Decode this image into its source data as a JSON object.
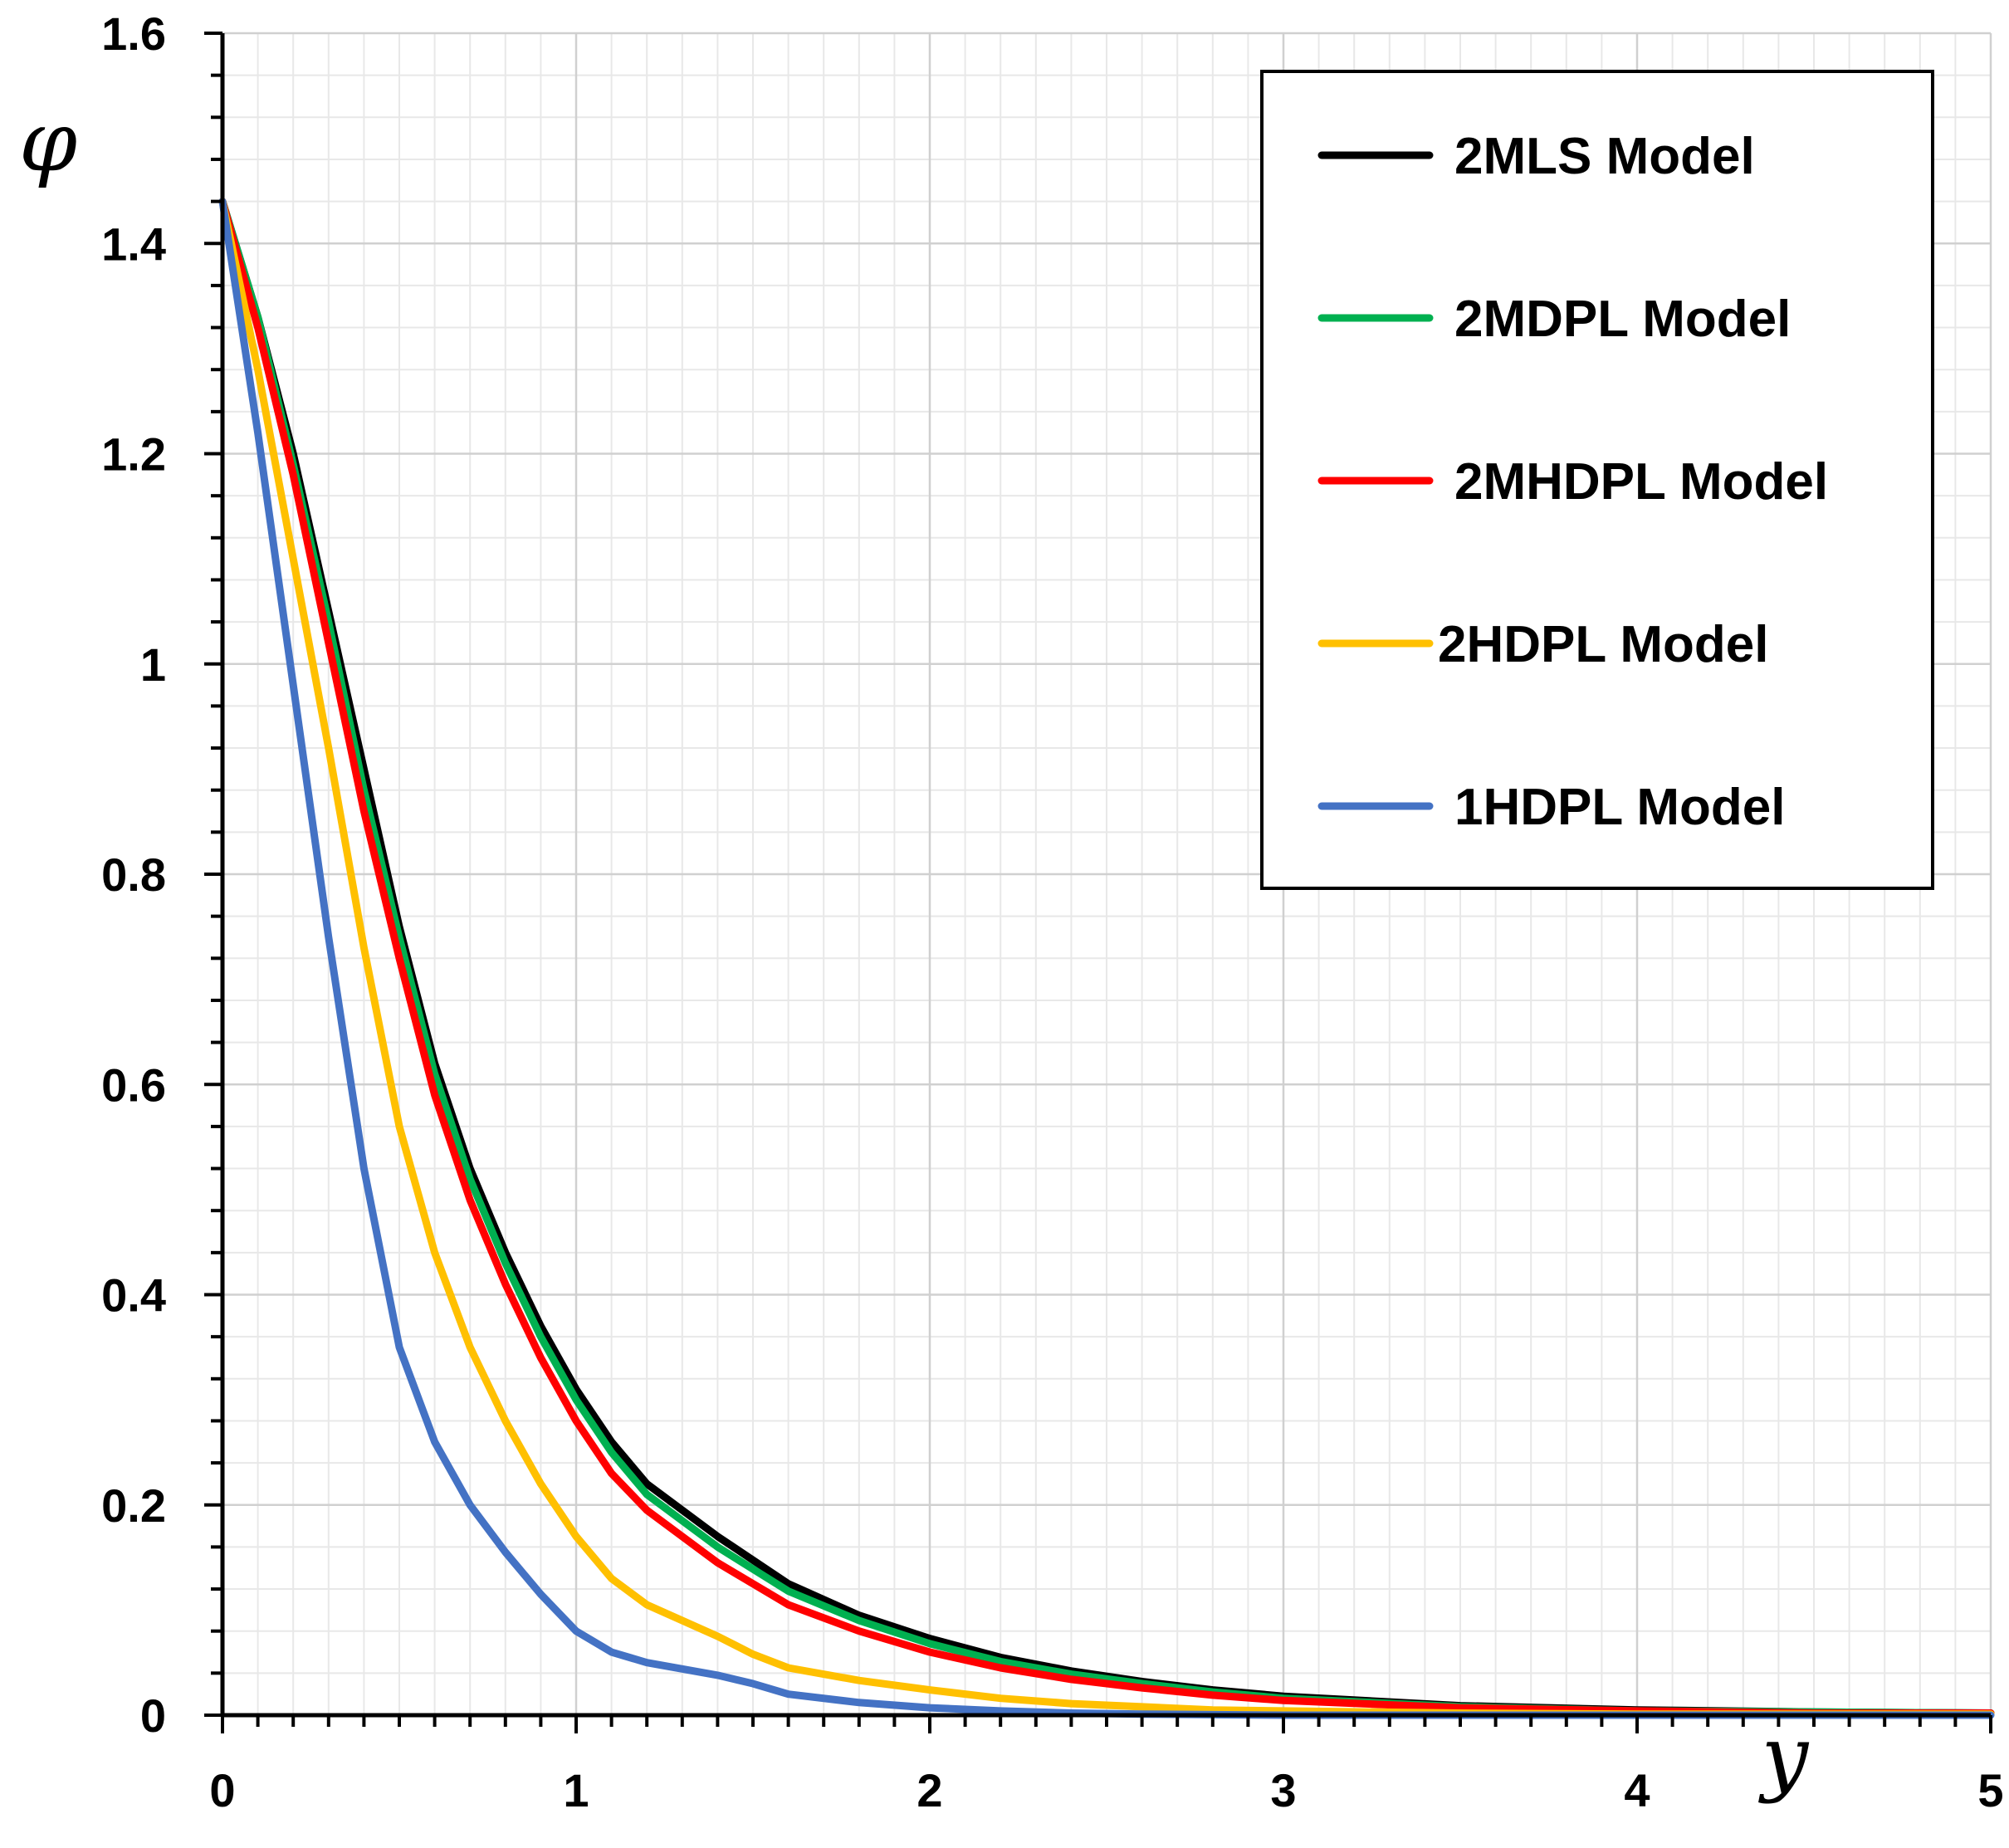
{
  "chart_data": {
    "type": "line",
    "title": "",
    "xlabel": "y",
    "ylabel": "φ",
    "xlim": [
      0,
      5
    ],
    "ylim": [
      0,
      1.6
    ],
    "x_major_ticks": [
      "0",
      "1",
      "2",
      "3",
      "4",
      "5"
    ],
    "y_major_ticks": [
      "0",
      "0.2",
      "0.4",
      "0.6",
      "0.8",
      "1",
      "1.2",
      "1.4",
      "1.6"
    ],
    "grid": true,
    "legend_position": "top-right",
    "series": [
      {
        "name": "2MLS Model",
        "color": "#000000",
        "points": [
          [
            0,
            1.44
          ],
          [
            0.1,
            1.33
          ],
          [
            0.2,
            1.2
          ],
          [
            0.3,
            1.05
          ],
          [
            0.4,
            0.9
          ],
          [
            0.5,
            0.75
          ],
          [
            0.6,
            0.62
          ],
          [
            0.7,
            0.52
          ],
          [
            0.8,
            0.44
          ],
          [
            0.9,
            0.37
          ],
          [
            1.0,
            0.31
          ],
          [
            1.1,
            0.26
          ],
          [
            1.2,
            0.22
          ],
          [
            1.4,
            0.17
          ],
          [
            1.6,
            0.125
          ],
          [
            1.8,
            0.095
          ],
          [
            2.0,
            0.073
          ],
          [
            2.2,
            0.055
          ],
          [
            2.4,
            0.042
          ],
          [
            2.6,
            0.032
          ],
          [
            2.8,
            0.024
          ],
          [
            3.0,
            0.018
          ],
          [
            3.5,
            0.009
          ],
          [
            4.0,
            0.005
          ],
          [
            4.5,
            0.003
          ],
          [
            5.0,
            0.002
          ]
        ]
      },
      {
        "name": "2MDPL Model",
        "color": "#00b050",
        "points": [
          [
            0,
            1.44
          ],
          [
            0.1,
            1.33
          ],
          [
            0.2,
            1.19
          ],
          [
            0.3,
            1.04
          ],
          [
            0.4,
            0.88
          ],
          [
            0.5,
            0.74
          ],
          [
            0.6,
            0.61
          ],
          [
            0.7,
            0.51
          ],
          [
            0.8,
            0.43
          ],
          [
            0.9,
            0.36
          ],
          [
            1.0,
            0.3
          ],
          [
            1.1,
            0.25
          ],
          [
            1.2,
            0.21
          ],
          [
            1.4,
            0.16
          ],
          [
            1.6,
            0.118
          ],
          [
            1.8,
            0.09
          ],
          [
            2.0,
            0.068
          ],
          [
            2.2,
            0.051
          ],
          [
            2.4,
            0.039
          ],
          [
            2.6,
            0.03
          ],
          [
            2.8,
            0.022
          ],
          [
            3.0,
            0.016
          ],
          [
            3.5,
            0.008
          ],
          [
            4.0,
            0.004
          ],
          [
            4.5,
            0.003
          ],
          [
            5.0,
            0.002
          ]
        ]
      },
      {
        "name": "2MHDPL Model",
        "color": "#ff0000",
        "points": [
          [
            0,
            1.44
          ],
          [
            0.1,
            1.32
          ],
          [
            0.2,
            1.18
          ],
          [
            0.3,
            1.02
          ],
          [
            0.4,
            0.86
          ],
          [
            0.5,
            0.72
          ],
          [
            0.6,
            0.59
          ],
          [
            0.7,
            0.49
          ],
          [
            0.8,
            0.41
          ],
          [
            0.9,
            0.34
          ],
          [
            1.0,
            0.28
          ],
          [
            1.1,
            0.23
          ],
          [
            1.2,
            0.195
          ],
          [
            1.4,
            0.145
          ],
          [
            1.6,
            0.105
          ],
          [
            1.8,
            0.08
          ],
          [
            2.0,
            0.06
          ],
          [
            2.2,
            0.045
          ],
          [
            2.4,
            0.034
          ],
          [
            2.6,
            0.026
          ],
          [
            2.8,
            0.019
          ],
          [
            3.0,
            0.014
          ],
          [
            3.5,
            0.007
          ],
          [
            4.0,
            0.004
          ],
          [
            4.5,
            0.002
          ],
          [
            5.0,
            0.002
          ]
        ]
      },
      {
        "name": "2HDPL Model",
        "color": "#ffc000",
        "points": [
          [
            0,
            1.44
          ],
          [
            0.1,
            1.28
          ],
          [
            0.2,
            1.1
          ],
          [
            0.3,
            0.92
          ],
          [
            0.4,
            0.73
          ],
          [
            0.5,
            0.56
          ],
          [
            0.6,
            0.44
          ],
          [
            0.7,
            0.35
          ],
          [
            0.8,
            0.28
          ],
          [
            0.9,
            0.22
          ],
          [
            1.0,
            0.17
          ],
          [
            1.1,
            0.13
          ],
          [
            1.2,
            0.105
          ],
          [
            1.4,
            0.075
          ],
          [
            1.5,
            0.058
          ],
          [
            1.6,
            0.045
          ],
          [
            1.8,
            0.033
          ],
          [
            2.0,
            0.024
          ],
          [
            2.2,
            0.016
          ],
          [
            2.4,
            0.011
          ],
          [
            2.6,
            0.008
          ],
          [
            2.8,
            0.005
          ],
          [
            3.0,
            0.004
          ],
          [
            3.5,
            0.002
          ],
          [
            4.0,
            0.001
          ],
          [
            5.0,
            0.001
          ]
        ]
      },
      {
        "name": "1HDPL Model",
        "color": "#4472c4",
        "points": [
          [
            0,
            1.44
          ],
          [
            0.1,
            1.22
          ],
          [
            0.2,
            0.98
          ],
          [
            0.3,
            0.74
          ],
          [
            0.4,
            0.52
          ],
          [
            0.5,
            0.35
          ],
          [
            0.6,
            0.26
          ],
          [
            0.7,
            0.2
          ],
          [
            0.8,
            0.155
          ],
          [
            0.9,
            0.115
          ],
          [
            1.0,
            0.08
          ],
          [
            1.1,
            0.06
          ],
          [
            1.2,
            0.05
          ],
          [
            1.4,
            0.038
          ],
          [
            1.5,
            0.03
          ],
          [
            1.6,
            0.02
          ],
          [
            1.8,
            0.012
          ],
          [
            2.0,
            0.007
          ],
          [
            2.2,
            0.004
          ],
          [
            2.4,
            0.002
          ],
          [
            2.6,
            0.001
          ],
          [
            3.0,
            0.0
          ],
          [
            4.0,
            0.0
          ],
          [
            5.0,
            0.0
          ]
        ]
      }
    ]
  }
}
